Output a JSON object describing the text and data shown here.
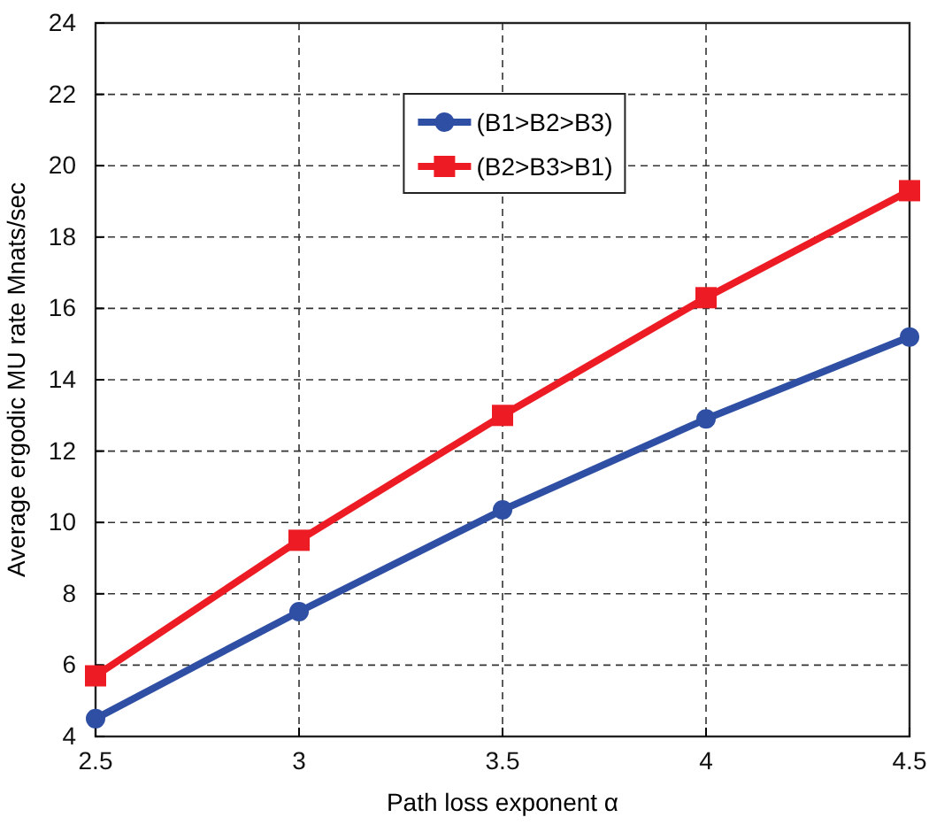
{
  "chart_data": {
    "type": "line",
    "xlabel": "Path loss exponent α",
    "ylabel": "Average ergodic MU rate Mnats/sec",
    "x": [
      2.5,
      3,
      3.5,
      4,
      4.5
    ],
    "series": [
      {
        "name": "(B1>B2>B3)",
        "color": "#2e4fa3",
        "marker": "circle",
        "values": [
          4.5,
          7.5,
          10.35,
          12.9,
          15.2
        ]
      },
      {
        "name": "(B2>B3>B1)",
        "color": "#ed1c24",
        "marker": "square",
        "values": [
          5.7,
          9.5,
          13.0,
          16.3,
          19.3
        ]
      }
    ],
    "xlim": [
      2.5,
      4.5
    ],
    "xticks": [
      2.5,
      3,
      3.5,
      4,
      4.5
    ],
    "ylim": [
      4,
      24
    ],
    "yticks": [
      4,
      6,
      8,
      10,
      12,
      14,
      16,
      18,
      20,
      22,
      24
    ],
    "grid": true,
    "legend": "top",
    "line_style": "solid"
  }
}
